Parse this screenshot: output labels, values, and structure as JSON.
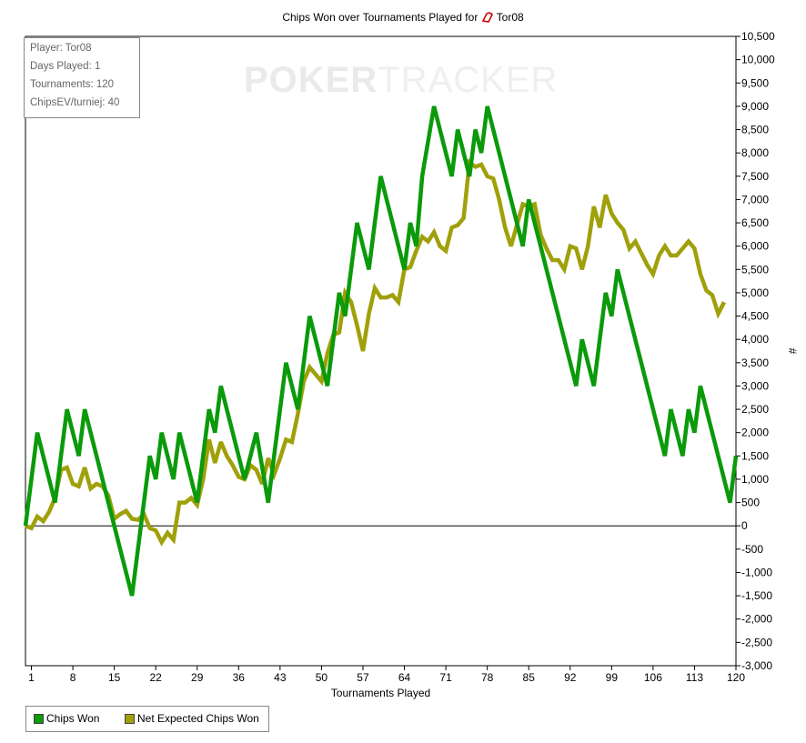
{
  "colors": {
    "chips_won": "#0a9a0a",
    "net_expected": "#a0a00a",
    "zero_line": "#000000",
    "axis": "#000000",
    "gridline": "none",
    "watermark": "#e6e6e6"
  },
  "header": {
    "title_prefix": "Chips Won over Tournaments Played for",
    "player_icon": "pokerstars-icon",
    "player_name": "Tor08"
  },
  "watermark": {
    "bold": "POKER",
    "light": "TRACKER"
  },
  "info": {
    "player": "Player: Tor08",
    "days": "Days Played: 1",
    "tournaments": "Tournaments: 120",
    "chipsev": "ChipsEV/turniej: 40"
  },
  "legend": {
    "chips_won": "Chips Won",
    "net_expected": "Net Expected Chips Won"
  },
  "chart_data": {
    "type": "line",
    "xlabel": "Tournaments Played",
    "ylabel": "#",
    "xlim": [
      0,
      120
    ],
    "ylim": [
      -3000,
      10500
    ],
    "x_ticks": [
      1,
      8,
      15,
      22,
      29,
      36,
      43,
      50,
      57,
      64,
      71,
      78,
      85,
      92,
      99,
      106,
      113,
      120
    ],
    "y_ticks": [
      -3000,
      -2500,
      -2000,
      -1500,
      -1000,
      -500,
      0,
      500,
      1000,
      1500,
      2000,
      2500,
      3000,
      3500,
      4000,
      4500,
      5000,
      5500,
      6000,
      6500,
      7000,
      7500,
      8000,
      8500,
      9000,
      9500,
      10000,
      10500
    ],
    "y_tick_labels": [
      "-3,000",
      "-2,500",
      "-2,000",
      "-1,500",
      "-1,000",
      "-500",
      "0",
      "500",
      "1,000",
      "1,500",
      "2,000",
      "2,500",
      "3,000",
      "3,500",
      "4,000",
      "4,500",
      "5,000",
      "5,500",
      "6,000",
      "6,500",
      "7,000",
      "7,500",
      "8,000",
      "8,500",
      "9,000",
      "9,500",
      "10,000",
      "10,500"
    ],
    "legend_position": "bottom-left",
    "grid": false,
    "series": [
      {
        "name": "Chips Won",
        "points": [
          [
            0,
            0
          ],
          [
            2,
            2000
          ],
          [
            5,
            500
          ],
          [
            7,
            2500
          ],
          [
            9,
            1500
          ],
          [
            10,
            2500
          ],
          [
            15,
            0
          ],
          [
            18,
            -1500
          ],
          [
            21,
            1500
          ],
          [
            22,
            1000
          ],
          [
            23,
            2000
          ],
          [
            25,
            1000
          ],
          [
            26,
            2000
          ],
          [
            29,
            500
          ],
          [
            31,
            2500
          ],
          [
            32,
            2000
          ],
          [
            33,
            3000
          ],
          [
            37,
            1000
          ],
          [
            39,
            2000
          ],
          [
            41,
            500
          ],
          [
            42,
            1500
          ],
          [
            44,
            3500
          ],
          [
            46,
            2500
          ],
          [
            48,
            4500
          ],
          [
            51,
            3000
          ],
          [
            53,
            5000
          ],
          [
            54,
            4500
          ],
          [
            56,
            6500
          ],
          [
            58,
            5500
          ],
          [
            60,
            7500
          ],
          [
            64,
            5500
          ],
          [
            65,
            6500
          ],
          [
            66,
            6000
          ],
          [
            67,
            7500
          ],
          [
            69,
            9000
          ],
          [
            72,
            7500
          ],
          [
            73,
            8500
          ],
          [
            75,
            7500
          ],
          [
            76,
            8500
          ],
          [
            77,
            8000
          ],
          [
            78,
            9000
          ],
          [
            84,
            6000
          ],
          [
            85,
            7000
          ],
          [
            93,
            3000
          ],
          [
            94,
            4000
          ],
          [
            96,
            3000
          ],
          [
            98,
            5000
          ],
          [
            99,
            4500
          ],
          [
            100,
            5500
          ],
          [
            108,
            1500
          ],
          [
            109,
            2500
          ],
          [
            111,
            1500
          ],
          [
            112,
            2500
          ],
          [
            113,
            2000
          ],
          [
            114,
            3000
          ],
          [
            119,
            500
          ],
          [
            120,
            1500
          ]
        ]
      },
      {
        "name": "Net Expected Chips Won",
        "points": [
          [
            0,
            0
          ],
          [
            1,
            -50
          ],
          [
            2,
            200
          ],
          [
            3,
            100
          ],
          [
            4,
            300
          ],
          [
            5,
            600
          ],
          [
            6,
            1200
          ],
          [
            7,
            1250
          ],
          [
            8,
            900
          ],
          [
            9,
            850
          ],
          [
            10,
            1250
          ],
          [
            11,
            800
          ],
          [
            12,
            900
          ],
          [
            13,
            850
          ],
          [
            14,
            650
          ],
          [
            15,
            150
          ],
          [
            16,
            250
          ],
          [
            17,
            320
          ],
          [
            18,
            150
          ],
          [
            19,
            130
          ],
          [
            20,
            250
          ],
          [
            21,
            -50
          ],
          [
            22,
            -100
          ],
          [
            23,
            -350
          ],
          [
            24,
            -150
          ],
          [
            25,
            -300
          ],
          [
            26,
            500
          ],
          [
            27,
            500
          ],
          [
            28,
            600
          ],
          [
            29,
            450
          ],
          [
            30,
            1000
          ],
          [
            31,
            1850
          ],
          [
            32,
            1350
          ],
          [
            33,
            1800
          ],
          [
            34,
            1500
          ],
          [
            35,
            1300
          ],
          [
            36,
            1050
          ],
          [
            37,
            1000
          ],
          [
            38,
            1300
          ],
          [
            39,
            1200
          ],
          [
            40,
            900
          ],
          [
            41,
            1450
          ],
          [
            42,
            1100
          ],
          [
            43,
            1450
          ],
          [
            44,
            1850
          ],
          [
            45,
            1800
          ],
          [
            46,
            2400
          ],
          [
            47,
            3100
          ],
          [
            48,
            3400
          ],
          [
            49,
            3250
          ],
          [
            50,
            3100
          ],
          [
            51,
            3700
          ],
          [
            52,
            4100
          ],
          [
            53,
            4150
          ],
          [
            54,
            5000
          ],
          [
            55,
            4800
          ],
          [
            56,
            4300
          ],
          [
            57,
            3750
          ],
          [
            58,
            4550
          ],
          [
            59,
            5100
          ],
          [
            60,
            4900
          ],
          [
            61,
            4900
          ],
          [
            62,
            4950
          ],
          [
            63,
            4800
          ],
          [
            64,
            5500
          ],
          [
            65,
            5550
          ],
          [
            66,
            5900
          ],
          [
            67,
            6200
          ],
          [
            68,
            6100
          ],
          [
            69,
            6300
          ],
          [
            70,
            6000
          ],
          [
            71,
            5900
          ],
          [
            72,
            6400
          ],
          [
            73,
            6450
          ],
          [
            74,
            6600
          ],
          [
            75,
            7800
          ],
          [
            76,
            7700
          ],
          [
            77,
            7750
          ],
          [
            78,
            7500
          ],
          [
            79,
            7450
          ],
          [
            80,
            7000
          ],
          [
            81,
            6400
          ],
          [
            82,
            6000
          ],
          [
            84,
            6900
          ],
          [
            85,
            6850
          ],
          [
            86,
            6900
          ],
          [
            87,
            6250
          ],
          [
            88,
            5950
          ],
          [
            89,
            5700
          ],
          [
            90,
            5700
          ],
          [
            91,
            5500
          ],
          [
            92,
            6000
          ],
          [
            93,
            5950
          ],
          [
            94,
            5500
          ],
          [
            95,
            6000
          ],
          [
            96,
            6850
          ],
          [
            97,
            6400
          ],
          [
            98,
            7100
          ],
          [
            99,
            6700
          ],
          [
            100,
            6500
          ],
          [
            101,
            6350
          ],
          [
            102,
            5950
          ],
          [
            103,
            6100
          ],
          [
            104,
            5850
          ],
          [
            105,
            5600
          ],
          [
            106,
            5400
          ],
          [
            107,
            5800
          ],
          [
            108,
            6000
          ],
          [
            109,
            5800
          ],
          [
            110,
            5800
          ],
          [
            111,
            5950
          ],
          [
            112,
            6100
          ],
          [
            113,
            5950
          ],
          [
            114,
            5400
          ],
          [
            115,
            5050
          ],
          [
            116,
            4950
          ],
          [
            117,
            4550
          ],
          [
            118,
            4800
          ]
        ]
      }
    ]
  }
}
